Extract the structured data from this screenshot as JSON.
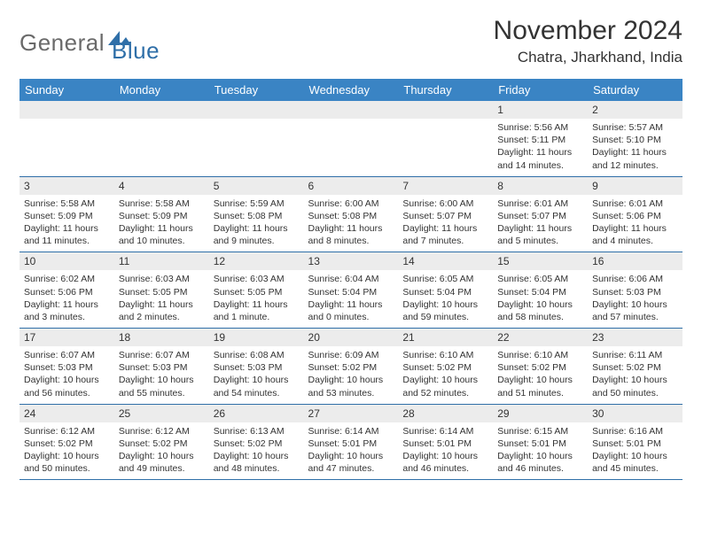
{
  "logo": {
    "general": "General",
    "blue": "Blue"
  },
  "header": {
    "title": "November 2024",
    "location": "Chatra, Jharkhand, India"
  },
  "colors": {
    "header_bg": "#3a84c4",
    "header_text": "#ffffff",
    "daynum_bg": "#ececec",
    "row_border": "#2f6fa8",
    "logo_gray": "#6a6a6a",
    "logo_blue": "#2f6fa8",
    "body_text": "#333333",
    "page_bg": "#ffffff"
  },
  "typography": {
    "title_fontsize": 30,
    "location_fontsize": 17,
    "dayheader_fontsize": 13,
    "daynum_fontsize": 12,
    "body_fontsize": 10.5
  },
  "day_headers": [
    "Sunday",
    "Monday",
    "Tuesday",
    "Wednesday",
    "Thursday",
    "Friday",
    "Saturday"
  ],
  "weeks": [
    [
      null,
      null,
      null,
      null,
      null,
      {
        "n": "1",
        "sunrise": "Sunrise: 5:56 AM",
        "sunset": "Sunset: 5:11 PM",
        "daylight": "Daylight: 11 hours and 14 minutes."
      },
      {
        "n": "2",
        "sunrise": "Sunrise: 5:57 AM",
        "sunset": "Sunset: 5:10 PM",
        "daylight": "Daylight: 11 hours and 12 minutes."
      }
    ],
    [
      {
        "n": "3",
        "sunrise": "Sunrise: 5:58 AM",
        "sunset": "Sunset: 5:09 PM",
        "daylight": "Daylight: 11 hours and 11 minutes."
      },
      {
        "n": "4",
        "sunrise": "Sunrise: 5:58 AM",
        "sunset": "Sunset: 5:09 PM",
        "daylight": "Daylight: 11 hours and 10 minutes."
      },
      {
        "n": "5",
        "sunrise": "Sunrise: 5:59 AM",
        "sunset": "Sunset: 5:08 PM",
        "daylight": "Daylight: 11 hours and 9 minutes."
      },
      {
        "n": "6",
        "sunrise": "Sunrise: 6:00 AM",
        "sunset": "Sunset: 5:08 PM",
        "daylight": "Daylight: 11 hours and 8 minutes."
      },
      {
        "n": "7",
        "sunrise": "Sunrise: 6:00 AM",
        "sunset": "Sunset: 5:07 PM",
        "daylight": "Daylight: 11 hours and 7 minutes."
      },
      {
        "n": "8",
        "sunrise": "Sunrise: 6:01 AM",
        "sunset": "Sunset: 5:07 PM",
        "daylight": "Daylight: 11 hours and 5 minutes."
      },
      {
        "n": "9",
        "sunrise": "Sunrise: 6:01 AM",
        "sunset": "Sunset: 5:06 PM",
        "daylight": "Daylight: 11 hours and 4 minutes."
      }
    ],
    [
      {
        "n": "10",
        "sunrise": "Sunrise: 6:02 AM",
        "sunset": "Sunset: 5:06 PM",
        "daylight": "Daylight: 11 hours and 3 minutes."
      },
      {
        "n": "11",
        "sunrise": "Sunrise: 6:03 AM",
        "sunset": "Sunset: 5:05 PM",
        "daylight": "Daylight: 11 hours and 2 minutes."
      },
      {
        "n": "12",
        "sunrise": "Sunrise: 6:03 AM",
        "sunset": "Sunset: 5:05 PM",
        "daylight": "Daylight: 11 hours and 1 minute."
      },
      {
        "n": "13",
        "sunrise": "Sunrise: 6:04 AM",
        "sunset": "Sunset: 5:04 PM",
        "daylight": "Daylight: 11 hours and 0 minutes."
      },
      {
        "n": "14",
        "sunrise": "Sunrise: 6:05 AM",
        "sunset": "Sunset: 5:04 PM",
        "daylight": "Daylight: 10 hours and 59 minutes."
      },
      {
        "n": "15",
        "sunrise": "Sunrise: 6:05 AM",
        "sunset": "Sunset: 5:04 PM",
        "daylight": "Daylight: 10 hours and 58 minutes."
      },
      {
        "n": "16",
        "sunrise": "Sunrise: 6:06 AM",
        "sunset": "Sunset: 5:03 PM",
        "daylight": "Daylight: 10 hours and 57 minutes."
      }
    ],
    [
      {
        "n": "17",
        "sunrise": "Sunrise: 6:07 AM",
        "sunset": "Sunset: 5:03 PM",
        "daylight": "Daylight: 10 hours and 56 minutes."
      },
      {
        "n": "18",
        "sunrise": "Sunrise: 6:07 AM",
        "sunset": "Sunset: 5:03 PM",
        "daylight": "Daylight: 10 hours and 55 minutes."
      },
      {
        "n": "19",
        "sunrise": "Sunrise: 6:08 AM",
        "sunset": "Sunset: 5:03 PM",
        "daylight": "Daylight: 10 hours and 54 minutes."
      },
      {
        "n": "20",
        "sunrise": "Sunrise: 6:09 AM",
        "sunset": "Sunset: 5:02 PM",
        "daylight": "Daylight: 10 hours and 53 minutes."
      },
      {
        "n": "21",
        "sunrise": "Sunrise: 6:10 AM",
        "sunset": "Sunset: 5:02 PM",
        "daylight": "Daylight: 10 hours and 52 minutes."
      },
      {
        "n": "22",
        "sunrise": "Sunrise: 6:10 AM",
        "sunset": "Sunset: 5:02 PM",
        "daylight": "Daylight: 10 hours and 51 minutes."
      },
      {
        "n": "23",
        "sunrise": "Sunrise: 6:11 AM",
        "sunset": "Sunset: 5:02 PM",
        "daylight": "Daylight: 10 hours and 50 minutes."
      }
    ],
    [
      {
        "n": "24",
        "sunrise": "Sunrise: 6:12 AM",
        "sunset": "Sunset: 5:02 PM",
        "daylight": "Daylight: 10 hours and 50 minutes."
      },
      {
        "n": "25",
        "sunrise": "Sunrise: 6:12 AM",
        "sunset": "Sunset: 5:02 PM",
        "daylight": "Daylight: 10 hours and 49 minutes."
      },
      {
        "n": "26",
        "sunrise": "Sunrise: 6:13 AM",
        "sunset": "Sunset: 5:02 PM",
        "daylight": "Daylight: 10 hours and 48 minutes."
      },
      {
        "n": "27",
        "sunrise": "Sunrise: 6:14 AM",
        "sunset": "Sunset: 5:01 PM",
        "daylight": "Daylight: 10 hours and 47 minutes."
      },
      {
        "n": "28",
        "sunrise": "Sunrise: 6:14 AM",
        "sunset": "Sunset: 5:01 PM",
        "daylight": "Daylight: 10 hours and 46 minutes."
      },
      {
        "n": "29",
        "sunrise": "Sunrise: 6:15 AM",
        "sunset": "Sunset: 5:01 PM",
        "daylight": "Daylight: 10 hours and 46 minutes."
      },
      {
        "n": "30",
        "sunrise": "Sunrise: 6:16 AM",
        "sunset": "Sunset: 5:01 PM",
        "daylight": "Daylight: 10 hours and 45 minutes."
      }
    ]
  ]
}
